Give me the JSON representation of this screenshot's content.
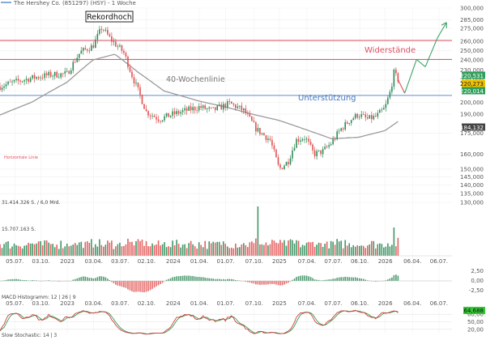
{
  "header": {
    "title": "The Hershey Co. (851297) (HSY) - 1 Woche"
  },
  "colors": {
    "up": "#2e8b57",
    "down": "#e05050",
    "sma": "#9a9a9a",
    "support": "#5b8fcf",
    "resistance": "#e06070",
    "forecast_up": "#3fa46a",
    "forecast_down": "#e05050",
    "badge_price": "#2e9e5b",
    "badge_mid": "#f0c000",
    "badge_sma": "#444444",
    "stoch_k": "#d04040",
    "stoch_d": "#3a9a50",
    "stoch_badge": "#32c832"
  },
  "annotations": {
    "record_high": "Rekordhoch",
    "sma_label": "40-Wochenlinie",
    "resistance_label": "Widerstände",
    "support_label": "Unterstützung",
    "horizontal_line": "Horizontale Linie"
  },
  "volume_labels": {
    "top": "31.414.326 S. / 6,0 Mrd.",
    "mid": "15.707.163 S."
  },
  "indicator_labels": {
    "macd": "MACD Histogramm: 12 | 26 | 9",
    "stoch": "Slow Stochastic: 14 | 3"
  },
  "chart_data": {
    "type": "candlestick",
    "title": "The Hershey Co. (851297) (HSY) - 1 Woche",
    "y_scale": "log",
    "ylim": [
      130000,
      300000
    ],
    "y_ticks": [
      130000,
      135000,
      140000,
      145000,
      150000,
      160000,
      175000,
      190000,
      200000,
      210000,
      220000,
      230000,
      240000,
      250000,
      260000,
      275000,
      285000,
      300000
    ],
    "y_tick_labels": [
      "130,000",
      "135,000",
      "140,000",
      "145,000",
      "150,000",
      "160,000",
      "175,000",
      "190,000",
      "200,000",
      "210,000",
      "220,000",
      "230,000",
      "240,000",
      "250,000",
      "260,000",
      "275,000",
      "285,000",
      "300,000"
    ],
    "x_tick_labels": [
      "05.07.",
      "03.10.",
      "2023",
      "03.04.",
      "03.07.",
      "02.10.",
      "2024",
      "01.04.",
      "01.07.",
      "07.10.",
      "2025",
      "07.04.",
      "07.07.",
      "06.10.",
      "2026",
      "06.04.",
      "06.07."
    ],
    "horizontal_lines": [
      {
        "name": "Widerstände",
        "value": 261000
      },
      {
        "name": "Widerstände",
        "value": 240500
      },
      {
        "name": "Unterstützung",
        "value": 206000
      }
    ],
    "price_badges": [
      "220,531",
      "220,273",
      "220,014",
      "184,132"
    ],
    "anchors": [
      [
        "2022-05-01",
        213000
      ],
      [
        "2022-07-01",
        218000
      ],
      [
        "2022-09-01",
        222000
      ],
      [
        "2022-11-01",
        225000
      ],
      [
        "2023-01-01",
        226000
      ],
      [
        "2023-02-15",
        248000
      ],
      [
        "2023-04-01",
        255000
      ],
      [
        "2023-05-01",
        276000
      ],
      [
        "2023-06-01",
        262000
      ],
      [
        "2023-07-15",
        248000
      ],
      [
        "2023-08-15",
        223000
      ],
      [
        "2023-10-01",
        192000
      ],
      [
        "2023-11-15",
        186000
      ],
      [
        "2024-01-01",
        190000
      ],
      [
        "2024-02-15",
        193000
      ],
      [
        "2024-04-01",
        196000
      ],
      [
        "2024-05-15",
        193000
      ],
      [
        "2024-06-15",
        196000
      ],
      [
        "2024-07-15",
        199000
      ],
      [
        "2024-09-01",
        193000
      ],
      [
        "2024-10-15",
        178000
      ],
      [
        "2024-12-01",
        170000
      ],
      [
        "2025-01-01",
        150000
      ],
      [
        "2025-02-01",
        155000
      ],
      [
        "2025-03-01",
        170000
      ],
      [
        "2025-04-01",
        172000
      ],
      [
        "2025-05-01",
        160000
      ],
      [
        "2025-06-01",
        162000
      ],
      [
        "2025-07-01",
        168000
      ],
      [
        "2025-08-01",
        178000
      ],
      [
        "2025-09-01",
        185000
      ],
      [
        "2025-10-01",
        190000
      ],
      [
        "2025-11-01",
        186000
      ],
      [
        "2025-12-01",
        188000
      ],
      [
        "2026-01-01",
        195000
      ],
      [
        "2026-01-20",
        210000
      ],
      [
        "2026-02-01",
        227000
      ],
      [
        "2026-02-15",
        220500
      ]
    ],
    "sma_anchors": [
      [
        "2022-05-01",
        188000
      ],
      [
        "2022-09-01",
        200000
      ],
      [
        "2023-01-01",
        218000
      ],
      [
        "2023-04-01",
        240000
      ],
      [
        "2023-06-15",
        246000
      ],
      [
        "2023-09-01",
        228000
      ],
      [
        "2023-12-01",
        210000
      ],
      [
        "2024-04-01",
        201000
      ],
      [
        "2024-07-01",
        196000
      ],
      [
        "2024-10-01",
        190000
      ],
      [
        "2025-01-01",
        185000
      ],
      [
        "2025-04-01",
        178000
      ],
      [
        "2025-07-01",
        171000
      ],
      [
        "2025-10-01",
        172000
      ],
      [
        "2026-01-01",
        177000
      ],
      [
        "2026-02-15",
        184132
      ]
    ],
    "forecast": [
      [
        "2026-02-15",
        220500
      ],
      [
        "2026-03-10",
        208000
      ],
      [
        "2026-04-20",
        240500
      ],
      [
        "2026-05-20",
        233000
      ],
      [
        "2026-07-01",
        264000
      ],
      [
        "2026-08-01",
        282000
      ]
    ],
    "volume": {
      "ylim": [
        0,
        31414326
      ],
      "spikes": [
        [
          "2024-10-20",
          31414326
        ],
        [
          "2026-02-01",
          18000000
        ]
      ]
    },
    "macd_axis": {
      "ticks": [
        "2,50",
        "0,00",
        "-2,50"
      ]
    },
    "stoch_axis": {
      "ticks": [
        "80,00",
        "50,00",
        "20,00"
      ],
      "badge": "64,688"
    }
  }
}
